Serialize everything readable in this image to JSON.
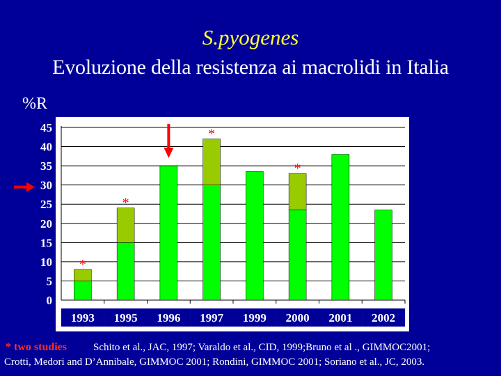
{
  "title": "S.pyogenes",
  "subtitle": "Evoluzione della resistenza ai macrolidi in Italia",
  "footnote": {
    "star_label": "* two studies",
    "citation_line1": "Schito et al., JAC, 1997; Varaldo et al., CID, 1999;Bruno et al ., GIMMOC2001;",
    "citation_line2": "Crotti, Medori and D’Annibale, GIMMOC 2001; Rondini, GIMMOC 2001; Soriano et al., JC, 2003."
  },
  "colors": {
    "background": "#000099",
    "plot_area": "#ffffff",
    "bar_primary": "#00ff00",
    "bar_secondary": "#99cc00",
    "arrow": "#ff0000",
    "star": "#ff0000",
    "title": "#ffff33"
  },
  "chart_data": {
    "type": "bar",
    "stacked": true,
    "ylabel": "%R",
    "ylim": [
      0,
      45
    ],
    "yticks": [
      0,
      5,
      10,
      15,
      20,
      25,
      30,
      35,
      40,
      45
    ],
    "grid": true,
    "categories": [
      "1993",
      "1995",
      "1996",
      "1997",
      "1999",
      "2000",
      "2001",
      "2002"
    ],
    "series": [
      {
        "color": "#00ff00",
        "values": [
          5,
          15,
          35,
          30,
          33.5,
          23.5,
          38,
          23.5
        ]
      },
      {
        "color": "#99cc00",
        "values": [
          3,
          9,
          0,
          12,
          0,
          9.5,
          0,
          0
        ]
      }
    ],
    "star_marker": "*",
    "starred_categories": [
      "1993",
      "1995",
      "1997",
      "2000"
    ],
    "arrows": [
      {
        "direction": "right",
        "points_at_value": 30
      },
      {
        "direction": "down",
        "points_at_category": "1996"
      }
    ]
  }
}
